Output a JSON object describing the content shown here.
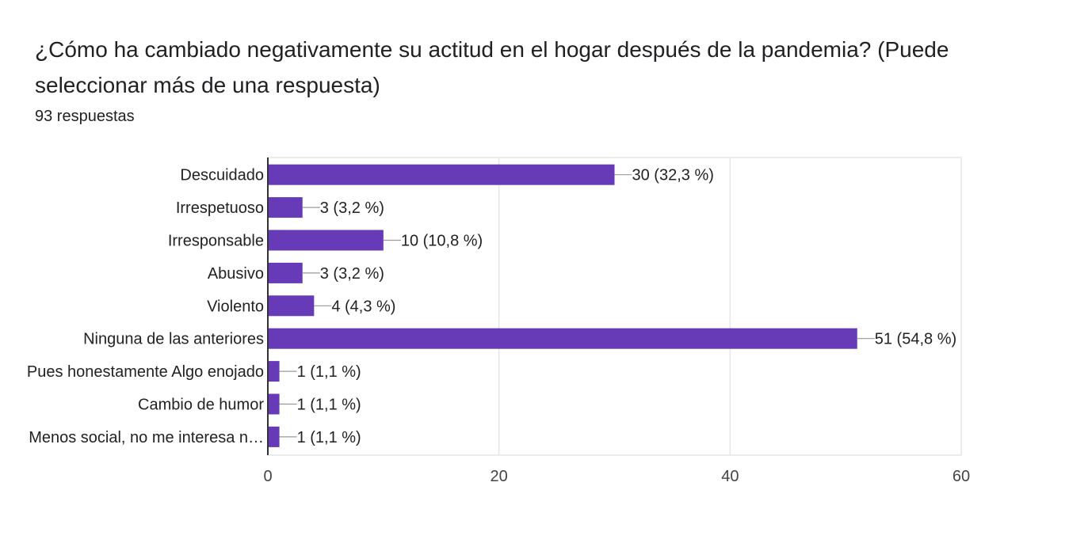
{
  "question": {
    "title": "¿Cómo ha cambiado negativamente su actitud en el hogar después de la pandemia? (Puede seleccionar más de una respuesta)",
    "response_count": "93 respuestas"
  },
  "colors": {
    "bar": "#673ab7",
    "grid": "#e6e6e6",
    "axis": "#333333",
    "leader": "#999999"
  },
  "chart_data": {
    "type": "bar",
    "orientation": "horizontal",
    "categories": [
      "Descuidado",
      "Irrespetuoso",
      "Irresponsable",
      "Abusivo",
      "Violento",
      "Ninguna de las anteriores",
      "Pues honestamente Algo enojado",
      "Cambio de humor",
      "Menos social, no me interesa n…"
    ],
    "values": [
      30,
      3,
      10,
      3,
      4,
      51,
      1,
      1,
      1
    ],
    "value_labels": [
      "30 (32,3 %)",
      "3 (3,2 %)",
      "10 (10,8 %)",
      "3 (3,2 %)",
      "4 (4,3 %)",
      "51 (54,8 %)",
      "1 (1,1 %)",
      "1 (1,1 %)",
      "1 (1,1 %)"
    ],
    "xlim": [
      0,
      60
    ],
    "xticks": [
      0,
      20,
      40,
      60
    ],
    "grid": true
  }
}
